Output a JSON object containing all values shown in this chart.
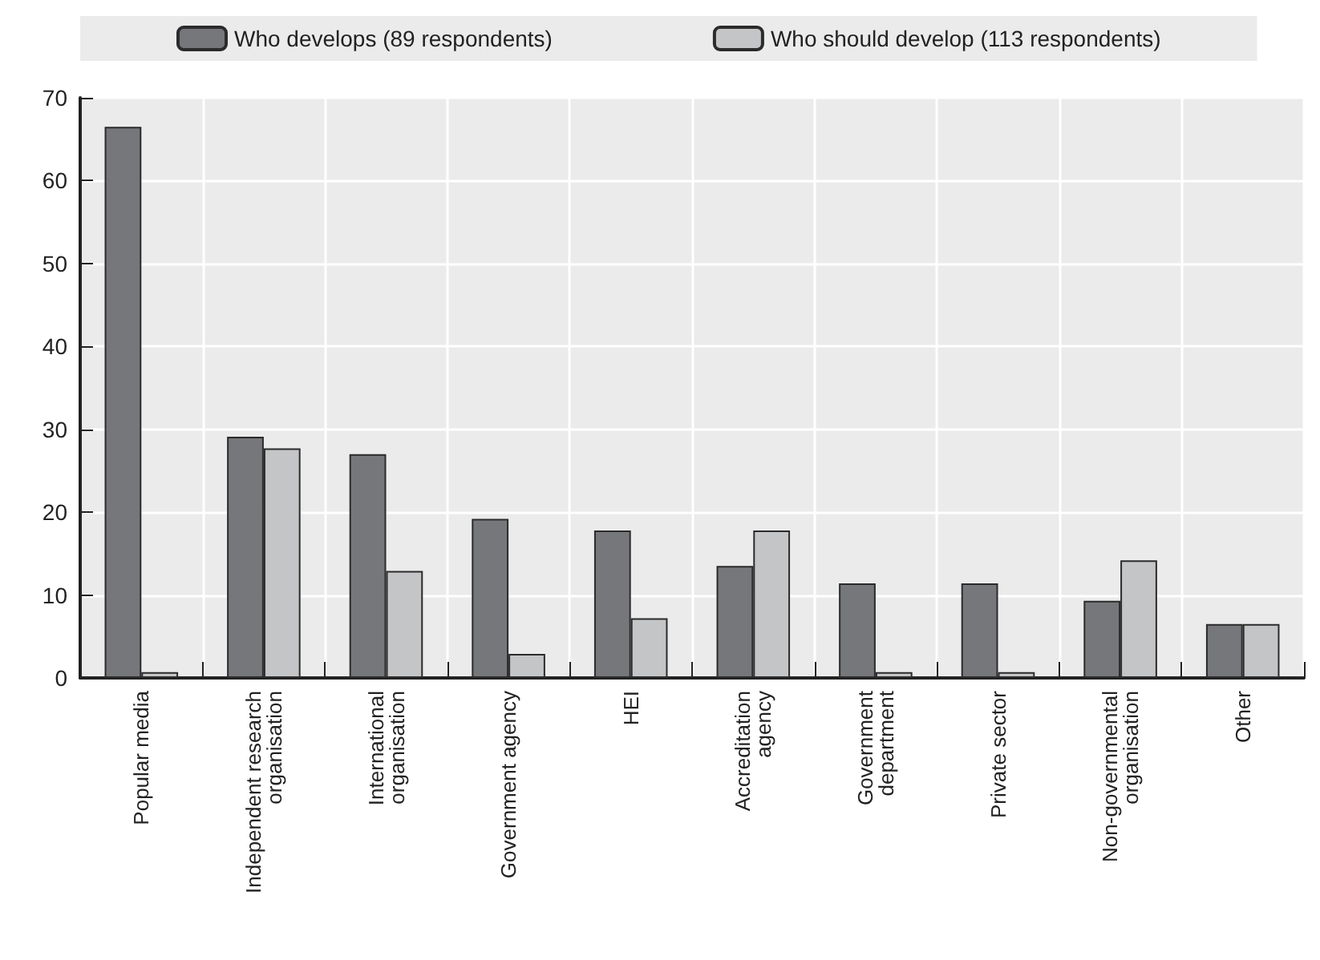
{
  "chart_data": {
    "type": "bar",
    "categories": [
      "Popular media",
      "Independent research\norganisation",
      "International\norganisation",
      "Government agency",
      "HEI",
      "Accreditation\nagency",
      "Government\ndepartment",
      "Private sector",
      "Non-governmental\norganisation",
      "Other"
    ],
    "series": [
      {
        "name": "Who develops (89 respondents)",
        "color": "#76777a",
        "values": [
          66.5,
          29.1,
          27.0,
          19.2,
          17.8,
          13.5,
          11.4,
          11.4,
          9.3,
          6.5
        ]
      },
      {
        "name": "Who should develop (113 respondents)",
        "color": "#c4c5c7",
        "values": [
          0.7,
          27.7,
          12.9,
          2.9,
          7.2,
          17.8,
          0.7,
          0.7,
          14.2,
          6.5
        ]
      }
    ],
    "ylim": [
      0,
      70
    ],
    "yticks": [
      0,
      10,
      20,
      30,
      40,
      50,
      60,
      70
    ],
    "grid": true,
    "legend": "top"
  }
}
